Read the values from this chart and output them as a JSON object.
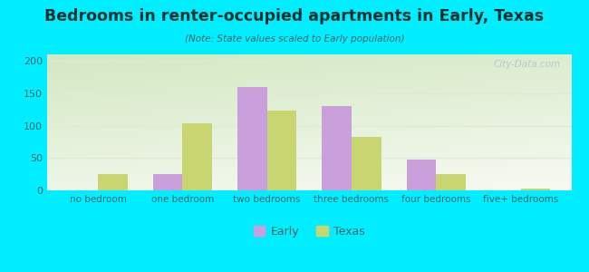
{
  "title": "Bedrooms in renter-occupied apartments in Early, Texas",
  "subtitle": "(Note: State values scaled to Early population)",
  "categories": [
    "no bedroom",
    "one bedroom",
    "two bedrooms",
    "three bedrooms",
    "four bedrooms",
    "five+ bedrooms"
  ],
  "early_values": [
    0,
    25,
    160,
    130,
    47,
    0
  ],
  "texas_values": [
    25,
    104,
    123,
    82,
    25,
    3
  ],
  "early_color": "#c9a0dc",
  "texas_color": "#c8d570",
  "background_outer": "#00eeff",
  "background_plot_top": "#ffffff",
  "background_plot_bottom": "#d4e8c2",
  "ylim": [
    0,
    210
  ],
  "yticks": [
    0,
    50,
    100,
    150,
    200
  ],
  "bar_width": 0.35,
  "legend_labels": [
    "Early",
    "Texas"
  ],
  "watermark": "City-Data.com",
  "title_color": "#003333",
  "subtitle_color": "#336666",
  "tick_color": "#336666",
  "grid_color": "#e0e8d8"
}
